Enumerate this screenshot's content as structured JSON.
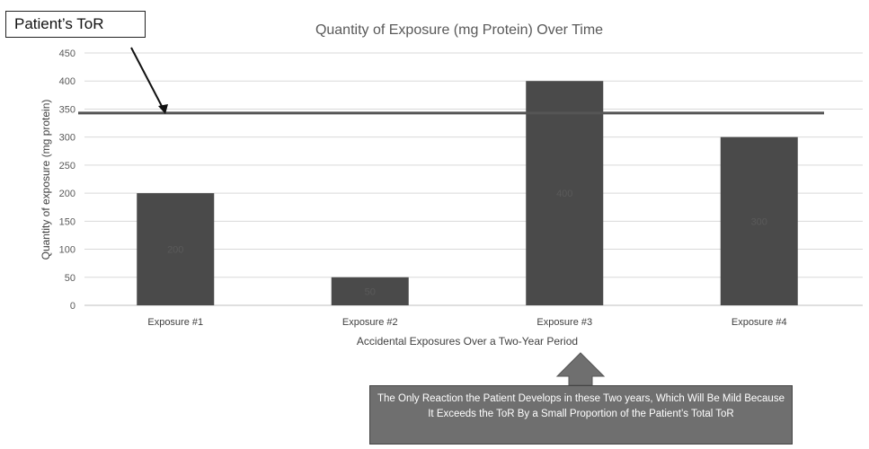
{
  "chart_data": {
    "type": "bar",
    "title": "Quantity of Exposure (mg Protein) Over Time",
    "xlabel": "Accidental Exposures Over a Two-Year Period",
    "ylabel": "Quantity of exposure (mg protein)",
    "categories": [
      "Exposure #1",
      "Exposure #2",
      "Exposure #3",
      "Exposure #4"
    ],
    "values": [
      200,
      50,
      400,
      300
    ],
    "ylim": [
      0,
      450
    ],
    "yticks": [
      0,
      50,
      100,
      150,
      200,
      250,
      300,
      350,
      400,
      450
    ],
    "reference_line": {
      "value": 343,
      "label": "Patient's ToR"
    },
    "grid": true,
    "bar_color": "#4a4a4a",
    "line_color": "#555555"
  },
  "callout": {
    "text": "Patient’s ToR"
  },
  "note": {
    "text": "The Only Reaction the Patient Develops in these Two years, Which Will Be Mild Because It Exceeds the ToR By a Small Proportion of the Patient’s Total ToR"
  },
  "colors": {
    "note_bg": "#6f6f6f",
    "bar": "#4a4a4a"
  }
}
